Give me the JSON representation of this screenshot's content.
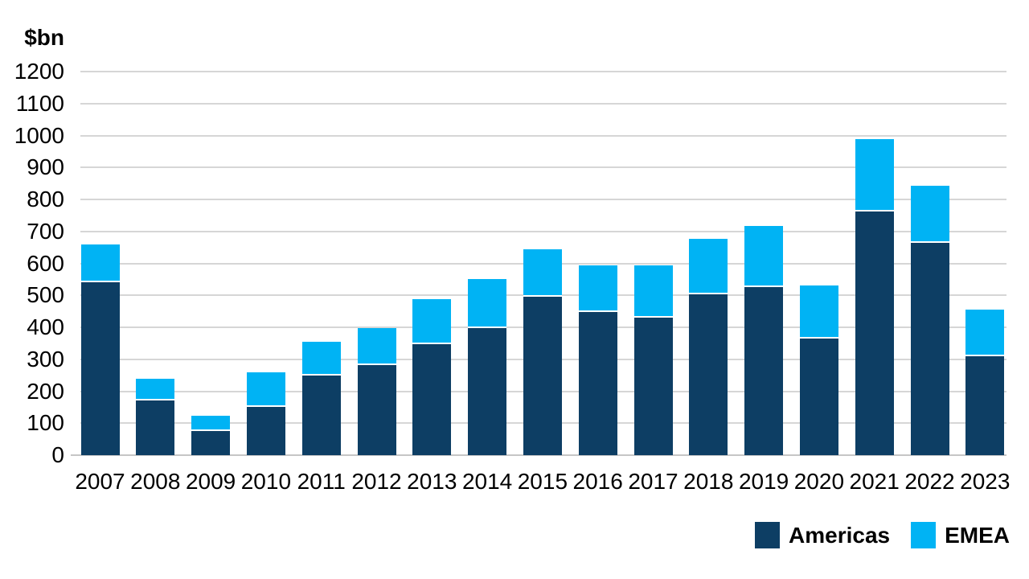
{
  "y_axis": {
    "unit_label": "$bn",
    "min": 0,
    "max": 1200,
    "step": 100
  },
  "chart_data": {
    "type": "bar",
    "stacked": true,
    "title": "",
    "xlabel": "",
    "ylabel": "$bn",
    "ylim": [
      0,
      1200
    ],
    "ytick_step": 100,
    "grid": true,
    "legend_position": "bottom-right",
    "categories": [
      "2007",
      "2008",
      "2009",
      "2010",
      "2011",
      "2012",
      "2013",
      "2014",
      "2015",
      "2016",
      "2017",
      "2018",
      "2019",
      "2020",
      "2021",
      "2022",
      "2023"
    ],
    "series": [
      {
        "name": "Americas",
        "color": "#0d3e64",
        "values": [
          540,
          170,
          75,
          152,
          250,
          281,
          348,
          398,
          495,
          448,
          430,
          502,
          525,
          365,
          763,
          664,
          310
        ]
      },
      {
        "name": "EMEA",
        "color": "#00b3f4",
        "values": [
          119,
          70,
          49,
          108,
          105,
          117,
          140,
          152,
          150,
          145,
          163,
          176,
          193,
          165,
          225,
          178,
          145
        ]
      }
    ],
    "totals": [
      659,
      240,
      124,
      260,
      355,
      398,
      488,
      550,
      645,
      593,
      593,
      678,
      718,
      530,
      988,
      842,
      455
    ]
  },
  "colors": {
    "background": "#ffffff",
    "gridline": "#d6d6d6",
    "baseline": "#c6c6c6",
    "text": "#000000",
    "americas": "#0d3e64",
    "emea": "#00b3f4"
  }
}
